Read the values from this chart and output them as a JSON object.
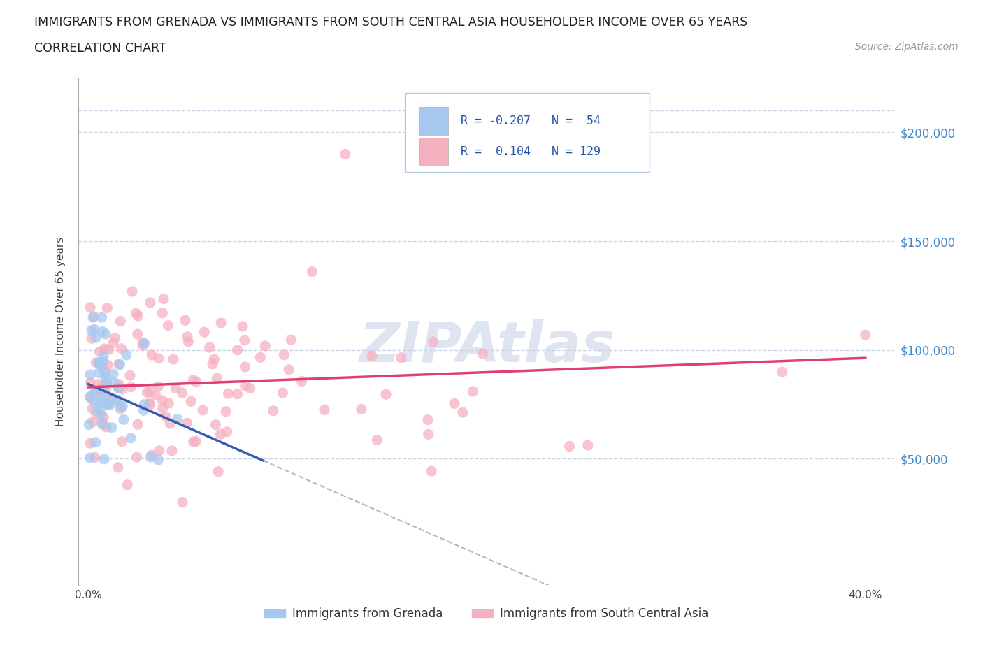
{
  "title_line1": "IMMIGRANTS FROM GRENADA VS IMMIGRANTS FROM SOUTH CENTRAL ASIA HOUSEHOLDER INCOME OVER 65 YEARS",
  "title_line2": "CORRELATION CHART",
  "source_text": "Source: ZipAtlas.com",
  "ylabel": "Householder Income Over 65 years",
  "legend_bottom": [
    "Immigrants from Grenada",
    "Immigrants from South Central Asia"
  ],
  "grenada_R": -0.207,
  "grenada_N": 54,
  "sca_R": 0.104,
  "sca_N": 129,
  "color_grenada": "#a8c8f0",
  "color_sca": "#f5b0c0",
  "line_color_grenada": "#3a5cb0",
  "line_color_sca": "#e04070",
  "line_color_dashed": "#b0b8c8",
  "watermark_color": "#c8d4e8",
  "background_color": "#ffffff",
  "grid_color": "#c8d4e8",
  "scatter_alpha": 0.75,
  "scatter_size": 120
}
